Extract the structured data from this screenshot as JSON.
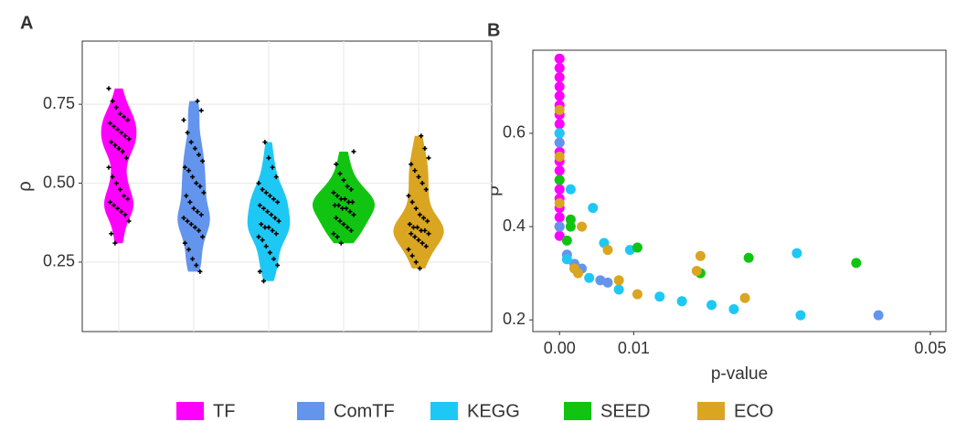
{
  "chart_data": [
    {
      "type": "violin",
      "panel_label": "A",
      "y_label": "ρ",
      "ylim": [
        0.03,
        0.95
      ],
      "yticks": [
        {
          "value": 0.25,
          "label": "0.25"
        },
        {
          "value": 0.5,
          "label": "0.50"
        },
        {
          "value": 0.75,
          "label": "0.75"
        }
      ],
      "grid": true,
      "series": [
        {
          "name": "TF",
          "color": "#ff00ff",
          "values": [
            0.8,
            0.76,
            0.74,
            0.72,
            0.71,
            0.7,
            0.69,
            0.68,
            0.67,
            0.66,
            0.65,
            0.64,
            0.63,
            0.62,
            0.61,
            0.6,
            0.58,
            0.55,
            0.52,
            0.5,
            0.48,
            0.46,
            0.45,
            0.44,
            0.43,
            0.42,
            0.41,
            0.4,
            0.38,
            0.34,
            0.31
          ]
        },
        {
          "name": "ComTF",
          "color": "#6495ed",
          "values": [
            0.76,
            0.73,
            0.7,
            0.66,
            0.63,
            0.61,
            0.59,
            0.57,
            0.55,
            0.54,
            0.52,
            0.5,
            0.49,
            0.47,
            0.46,
            0.44,
            0.42,
            0.41,
            0.4,
            0.39,
            0.38,
            0.37,
            0.36,
            0.35,
            0.33,
            0.31,
            0.29,
            0.26,
            0.24,
            0.22
          ]
        },
        {
          "name": "KEGG",
          "color": "#1ec8f5",
          "values": [
            0.63,
            0.58,
            0.55,
            0.52,
            0.5,
            0.48,
            0.47,
            0.46,
            0.45,
            0.44,
            0.43,
            0.42,
            0.41,
            0.4,
            0.39,
            0.38,
            0.37,
            0.36,
            0.36,
            0.35,
            0.34,
            0.33,
            0.32,
            0.3,
            0.28,
            0.26,
            0.24,
            0.22,
            0.19
          ]
        },
        {
          "name": "SEED",
          "color": "#11c411",
          "values": [
            0.6,
            0.56,
            0.53,
            0.51,
            0.49,
            0.48,
            0.47,
            0.46,
            0.45,
            0.45,
            0.44,
            0.44,
            0.43,
            0.43,
            0.42,
            0.42,
            0.41,
            0.4,
            0.39,
            0.38,
            0.37,
            0.36,
            0.35,
            0.34,
            0.33,
            0.31
          ]
        },
        {
          "name": "ECO",
          "color": "#daa520",
          "values": [
            0.65,
            0.61,
            0.58,
            0.56,
            0.54,
            0.52,
            0.5,
            0.48,
            0.46,
            0.44,
            0.42,
            0.4,
            0.39,
            0.38,
            0.37,
            0.36,
            0.36,
            0.35,
            0.35,
            0.34,
            0.34,
            0.33,
            0.32,
            0.31,
            0.3,
            0.29,
            0.27,
            0.25,
            0.23
          ]
        }
      ]
    },
    {
      "type": "scatter",
      "panel_label": "B",
      "y_label": "ρ",
      "x_label": "p-value",
      "xlim": [
        -0.0036,
        0.0521
      ],
      "ylim": [
        0.175,
        0.778
      ],
      "xticks": [
        {
          "value": 0,
          "label": "0.00"
        },
        {
          "value": 0.01,
          "label": "0.01"
        },
        {
          "value": 0.05,
          "label": "0.05"
        }
      ],
      "yticks": [
        0.2,
        0.4,
        0.6
      ],
      "series": [
        {
          "color": "#ff00ff",
          "x": [
            0,
            0,
            0,
            0,
            0,
            0,
            0,
            0,
            0,
            0,
            0,
            0,
            0,
            0,
            0,
            0,
            0,
            0,
            0,
            0
          ],
          "values": [
            0.76,
            0.74,
            0.72,
            0.7,
            0.68,
            0.66,
            0.64,
            0.62,
            0.6,
            0.58,
            0.56,
            0.54,
            0.52,
            0.5,
            0.48,
            0.46,
            0.44,
            0.42,
            0.4,
            0.38
          ]
        },
        {
          "color": "#6495ed",
          "x": [
            0.0065,
            0.0055,
            0.043,
            0.003,
            0.002,
            0.001,
            0,
            0
          ],
          "values": [
            0.28,
            0.285,
            0.21,
            0.31,
            0.32,
            0.34,
            0.58,
            0.4
          ]
        },
        {
          "color": "#1ec8f5",
          "x": [
            0.0045,
            0.0095,
            0.006,
            0.0015,
            0.008,
            0.0135,
            0.0165,
            0.0205,
            0.0235,
            0.0325,
            0.032,
            0.004,
            0.001,
            0
          ],
          "values": [
            0.44,
            0.35,
            0.365,
            0.48,
            0.265,
            0.25,
            0.24,
            0.232,
            0.223,
            0.21,
            0.343,
            0.29,
            0.33,
            0.6
          ]
        },
        {
          "color": "#11c411",
          "x": [
            0.0105,
            0.019,
            0.0255,
            0.04,
            0.0015,
            0.0015,
            0.001,
            0
          ],
          "values": [
            0.355,
            0.3,
            0.333,
            0.322,
            0.415,
            0.4,
            0.37,
            0.5
          ]
        },
        {
          "color": "#daa520",
          "x": [
            0,
            0.003,
            0.0065,
            0.008,
            0.0105,
            0.0185,
            0.019,
            0.025,
            0.002,
            0.0025,
            0,
            0
          ],
          "values": [
            0.65,
            0.4,
            0.35,
            0.285,
            0.255,
            0.305,
            0.337,
            0.247,
            0.31,
            0.3,
            0.55,
            0.45
          ]
        }
      ]
    }
  ]
}
